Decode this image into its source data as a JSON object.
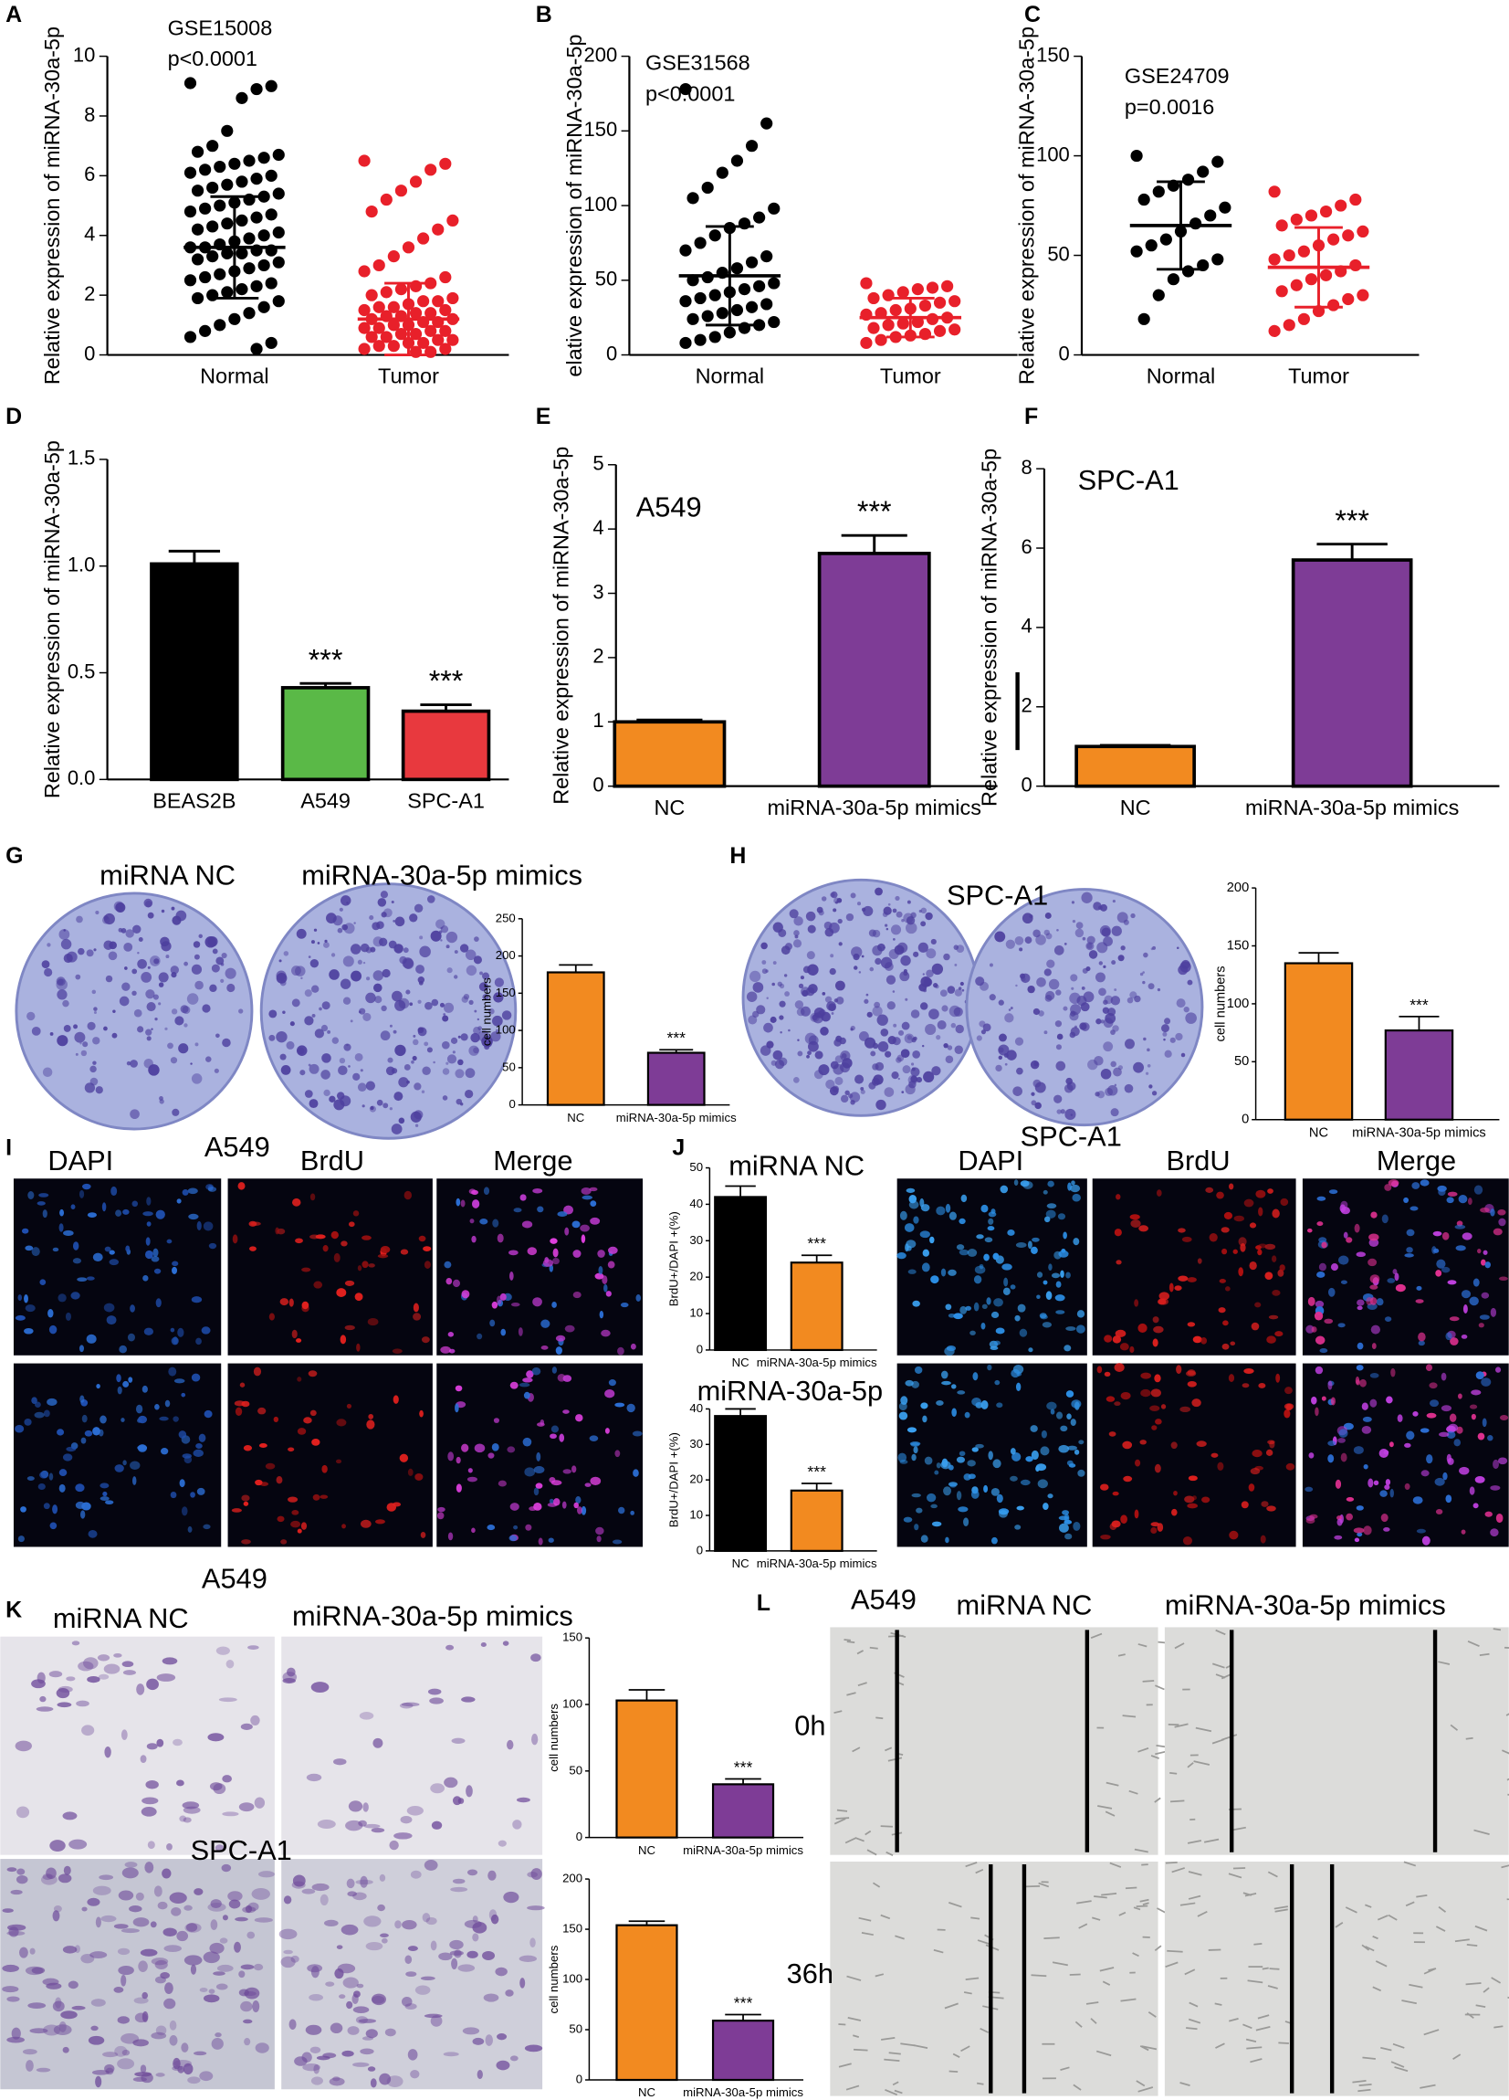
{
  "chart_data": [
    {
      "type": "strip",
      "panel": "A",
      "annotations": [
        "GSE15008",
        "p<0.0001"
      ],
      "ylabel": "Relative expression of miRNA-30a-5p",
      "categories": [
        "Normal",
        "Tumor"
      ],
      "ylim": [
        0,
        10
      ],
      "yticks": [
        0,
        2,
        4,
        6,
        8,
        10
      ],
      "series": [
        {
          "color": "#000000",
          "mean": 3.6,
          "sd": 1.7,
          "values": [
            9.1,
            9.0,
            8.9,
            8.6,
            7.5,
            7.0,
            6.8,
            6.7,
            6.6,
            6.5,
            6.4,
            6.3,
            6.2,
            6.1,
            6.0,
            5.9,
            5.8,
            5.7,
            5.6,
            5.5,
            5.4,
            5.3,
            5.2,
            5.1,
            5.0,
            4.9,
            4.8,
            4.7,
            4.6,
            4.5,
            4.4,
            4.3,
            4.2,
            4.1,
            4.0,
            3.9,
            3.8,
            3.7,
            3.6,
            3.6,
            3.5,
            3.5,
            3.4,
            3.4,
            3.3,
            3.2,
            3.1,
            3.0,
            2.9,
            2.8,
            2.7,
            2.6,
            2.5,
            2.4,
            2.3,
            2.2,
            2.1,
            2.0,
            1.9,
            1.8,
            1.6,
            1.4,
            1.2,
            1.0,
            0.8,
            0.6,
            0.4,
            0.2
          ]
        },
        {
          "color": "#e8202a",
          "mean": 1.2,
          "sd": 1.2,
          "values": [
            6.5,
            6.4,
            6.2,
            5.8,
            5.5,
            5.2,
            4.8,
            4.5,
            4.2,
            3.9,
            3.6,
            3.3,
            3.0,
            2.8,
            2.6,
            2.4,
            2.3,
            2.2,
            2.1,
            2.0,
            1.9,
            1.8,
            1.8,
            1.7,
            1.6,
            1.6,
            1.5,
            1.5,
            1.4,
            1.4,
            1.3,
            1.3,
            1.2,
            1.2,
            1.1,
            1.1,
            1.0,
            1.0,
            0.9,
            0.9,
            0.8,
            0.8,
            0.7,
            0.7,
            0.6,
            0.6,
            0.5,
            0.5,
            0.4,
            0.4,
            0.3,
            0.3,
            0.2,
            0.2,
            0.1,
            0.1
          ]
        }
      ]
    },
    {
      "type": "strip",
      "panel": "B",
      "annotations": [
        "GSE31568",
        "p<0.0001"
      ],
      "ylabel": "elative expression of miRNA-30a-5p",
      "categories": [
        "Normal",
        "Tumor"
      ],
      "ylim": [
        0,
        200
      ],
      "yticks": [
        0,
        50,
        100,
        150,
        200
      ],
      "series": [
        {
          "color": "#000000",
          "mean": 53,
          "sd": 33,
          "values": [
            178,
            155,
            140,
            130,
            122,
            112,
            105,
            98,
            92,
            88,
            85,
            80,
            75,
            70,
            66,
            62,
            58,
            55,
            52,
            50,
            48,
            46,
            44,
            42,
            40,
            38,
            36,
            34,
            32,
            30,
            28,
            26,
            24,
            22,
            20,
            18,
            15,
            12,
            10,
            8
          ]
        },
        {
          "color": "#e8202a",
          "mean": 25,
          "sd": 13,
          "values": [
            48,
            46,
            45,
            44,
            42,
            40,
            38,
            36,
            35,
            33,
            31,
            30,
            28,
            27,
            25,
            24,
            22,
            21,
            20,
            18,
            17,
            16,
            14,
            13,
            12,
            10,
            8
          ]
        }
      ]
    },
    {
      "type": "strip",
      "panel": "C",
      "annotations": [
        "GSE24709",
        "p=0.0016"
      ],
      "ylabel": "Relative expression of miRNA-30a-5p",
      "categories": [
        "Normal",
        "Tumor"
      ],
      "ylim": [
        0,
        150
      ],
      "yticks": [
        0,
        50,
        100,
        150
      ],
      "series": [
        {
          "color": "#000000",
          "mean": 65,
          "sd": 22,
          "values": [
            100,
            97,
            92,
            88,
            85,
            82,
            78,
            74,
            70,
            66,
            62,
            58,
            55,
            52,
            48,
            45,
            42,
            38,
            30,
            18
          ]
        },
        {
          "color": "#e8202a",
          "mean": 44,
          "sd": 20,
          "values": [
            82,
            78,
            75,
            72,
            70,
            68,
            65,
            62,
            60,
            58,
            55,
            52,
            50,
            48,
            45,
            42,
            40,
            38,
            35,
            32,
            30,
            28,
            25,
            22,
            18,
            15,
            12
          ]
        }
      ]
    },
    {
      "type": "bar",
      "panel": "D",
      "ylabel": "Relative expression of miRNA-30a-5p",
      "categories": [
        "BEAS2B",
        "A549",
        "SPC-A1"
      ],
      "values": [
        1.01,
        0.43,
        0.32
      ],
      "errors": [
        0.06,
        0.02,
        0.03
      ],
      "colors": [
        "#000000",
        "#5ab947",
        "#e8393e"
      ],
      "ylim": [
        0,
        1.5
      ],
      "yticks": [
        {
          "value": 0,
          "label": "0.0"
        },
        0.5,
        {
          "value": 1,
          "label": "1.0"
        },
        1.5
      ],
      "annotations": [
        {
          "text": "***",
          "category": 1
        },
        {
          "text": "***",
          "category": 2
        }
      ]
    },
    {
      "type": "bar",
      "panel": "E",
      "note": "A549",
      "ylabel": "Relative expression of miRNA-30a-5p",
      "categories": [
        "NC",
        "miRNA-30a-5p mimics"
      ],
      "values": [
        1.0,
        3.62
      ],
      "errors": [
        0.03,
        0.28
      ],
      "colors": [
        "#f28a20",
        "#7e3c96"
      ],
      "ylim": [
        0,
        5
      ],
      "yticks": [
        0,
        1,
        2,
        3,
        4,
        5
      ],
      "annotations": [
        {
          "text": "***",
          "category": 1
        }
      ]
    },
    {
      "type": "bar",
      "panel": "F",
      "note": "SPC-A1",
      "ylabel": "Relative expression of miRNA-30a-5p",
      "categories": [
        "NC",
        "miRNA-30a-5p mimics"
      ],
      "values": [
        1.0,
        5.7
      ],
      "errors": [
        0.03,
        0.4
      ],
      "colors": [
        "#f28a20",
        "#7e3c96"
      ],
      "ylim": [
        0,
        8
      ],
      "yticks": [
        0,
        2,
        4,
        6,
        8
      ],
      "annotations": [
        {
          "text": "***",
          "category": 1
        }
      ]
    },
    {
      "type": "bar",
      "ylabel": "cell numbers",
      "categories": [
        "NC",
        "miRNA-30a-5p mimics"
      ],
      "values": [
        178,
        70
      ],
      "errors": [
        10,
        4
      ],
      "colors": [
        "#f28a20",
        "#7e3c96"
      ],
      "ylim": [
        0,
        250
      ],
      "yticks": [
        0,
        50,
        100,
        150,
        200,
        250
      ],
      "annotations": [
        {
          "text": "***",
          "category": 1
        }
      ]
    },
    {
      "type": "bar",
      "ylabel": "cell numbers",
      "categories": [
        "NC",
        "miRNA-30a-5p mimics"
      ],
      "values": [
        135,
        77
      ],
      "errors": [
        9,
        12
      ],
      "colors": [
        "#f28a20",
        "#7e3c96"
      ],
      "ylim": [
        0,
        200
      ],
      "yticks": [
        0,
        50,
        100,
        150,
        200
      ],
      "annotations": [
        {
          "text": "***",
          "category": 1
        }
      ]
    },
    {
      "type": "bar",
      "ylabel": "BrdU+/DAPI +(%)",
      "categories": [
        "NC",
        "miRNA-30a-5p mimics"
      ],
      "values": [
        42,
        24
      ],
      "errors": [
        3,
        2
      ],
      "colors": [
        "#000000",
        "#f28a20"
      ],
      "ylim": [
        0,
        50
      ],
      "yticks": [
        0,
        10,
        20,
        30,
        40,
        50
      ],
      "annotations": [
        {
          "text": "***",
          "category": 1
        }
      ]
    },
    {
      "type": "bar",
      "ylabel": "BrdU+/DAPI +(%)",
      "categories": [
        "NC",
        "miRNA-30a-5p mimics"
      ],
      "values": [
        38,
        17
      ],
      "errors": [
        2,
        2
      ],
      "colors": [
        "#000000",
        "#f28a20"
      ],
      "ylim": [
        0,
        40
      ],
      "yticks": [
        0,
        10,
        20,
        30,
        40
      ],
      "annotations": [
        {
          "text": "***",
          "category": 1
        }
      ]
    },
    {
      "type": "bar",
      "ylabel": "cell numbers",
      "categories": [
        "NC",
        "miRNA-30a-5p mimics"
      ],
      "values": [
        103,
        40
      ],
      "errors": [
        8,
        4
      ],
      "colors": [
        "#f28a20",
        "#7e3c96"
      ],
      "ylim": [
        0,
        150
      ],
      "yticks": [
        0,
        50,
        100,
        150
      ],
      "annotations": [
        {
          "text": "***",
          "category": 1
        }
      ]
    },
    {
      "type": "bar",
      "ylabel": "cell numbers",
      "categories": [
        "NC",
        "miRNA-30a-5p mimics"
      ],
      "values": [
        154,
        59
      ],
      "errors": [
        4,
        6
      ],
      "colors": [
        "#f28a20",
        "#7e3c96"
      ],
      "ylim": [
        0,
        200
      ],
      "yticks": [
        0,
        50,
        100,
        150,
        200
      ],
      "annotations": [
        {
          "text": "***",
          "category": 1
        }
      ]
    }
  ],
  "image_panels": [
    {
      "letter": "G",
      "labels": [
        "miRNA NC",
        "miRNA-30a-5p mimics"
      ]
    },
    {
      "letter": "H",
      "labels": [
        "SPC-A1"
      ]
    },
    {
      "letter": "I",
      "labels": [
        "DAPI",
        "A549",
        "BrdU",
        "Merge"
      ]
    },
    {
      "letter": "J",
      "labels": [
        "miRNA NC",
        "miRNA-30a-5p",
        "DAPI",
        "SPC-A1",
        "BrdU",
        "Merge"
      ]
    },
    {
      "letter": "K",
      "labels": [
        "A549",
        "miRNA NC",
        "miRNA-30a-5p mimics",
        "SPC-A1"
      ]
    },
    {
      "letter": "L",
      "labels": [
        "A549",
        "miRNA NC",
        "miRNA-30a-5p mimics",
        "0h",
        "36h"
      ]
    }
  ]
}
